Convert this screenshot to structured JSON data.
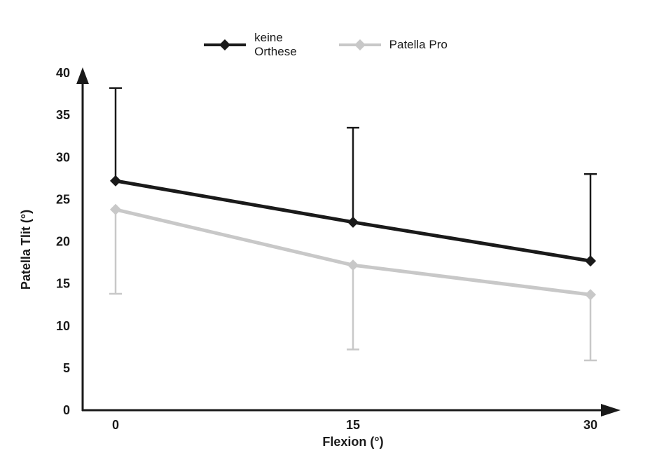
{
  "chart_data": {
    "type": "line",
    "x": [
      0,
      15,
      30
    ],
    "xlabel": "Flexion (°)",
    "ylabel": "Patella Tlit (°)",
    "ylim": [
      0,
      40
    ],
    "yticks": [
      0,
      5,
      10,
      15,
      20,
      25,
      30,
      35,
      40
    ],
    "grid": false,
    "legend_position": "top",
    "axis_color": "#1a1a1a",
    "series": [
      {
        "name": "keine Orthese",
        "legend_label": "keine\nOrthese",
        "color": "#1a1a1a",
        "values": [
          27.2,
          22.3,
          17.7
        ],
        "error_upper": [
          38.2,
          33.5,
          28.0
        ],
        "error_lower": null
      },
      {
        "name": "Patella Pro",
        "legend_label": "Patella Pro",
        "color": "#c8c8c8",
        "values": [
          23.8,
          17.2,
          13.7
        ],
        "error_upper": null,
        "error_lower": [
          13.8,
          7.2,
          5.9
        ]
      }
    ]
  }
}
